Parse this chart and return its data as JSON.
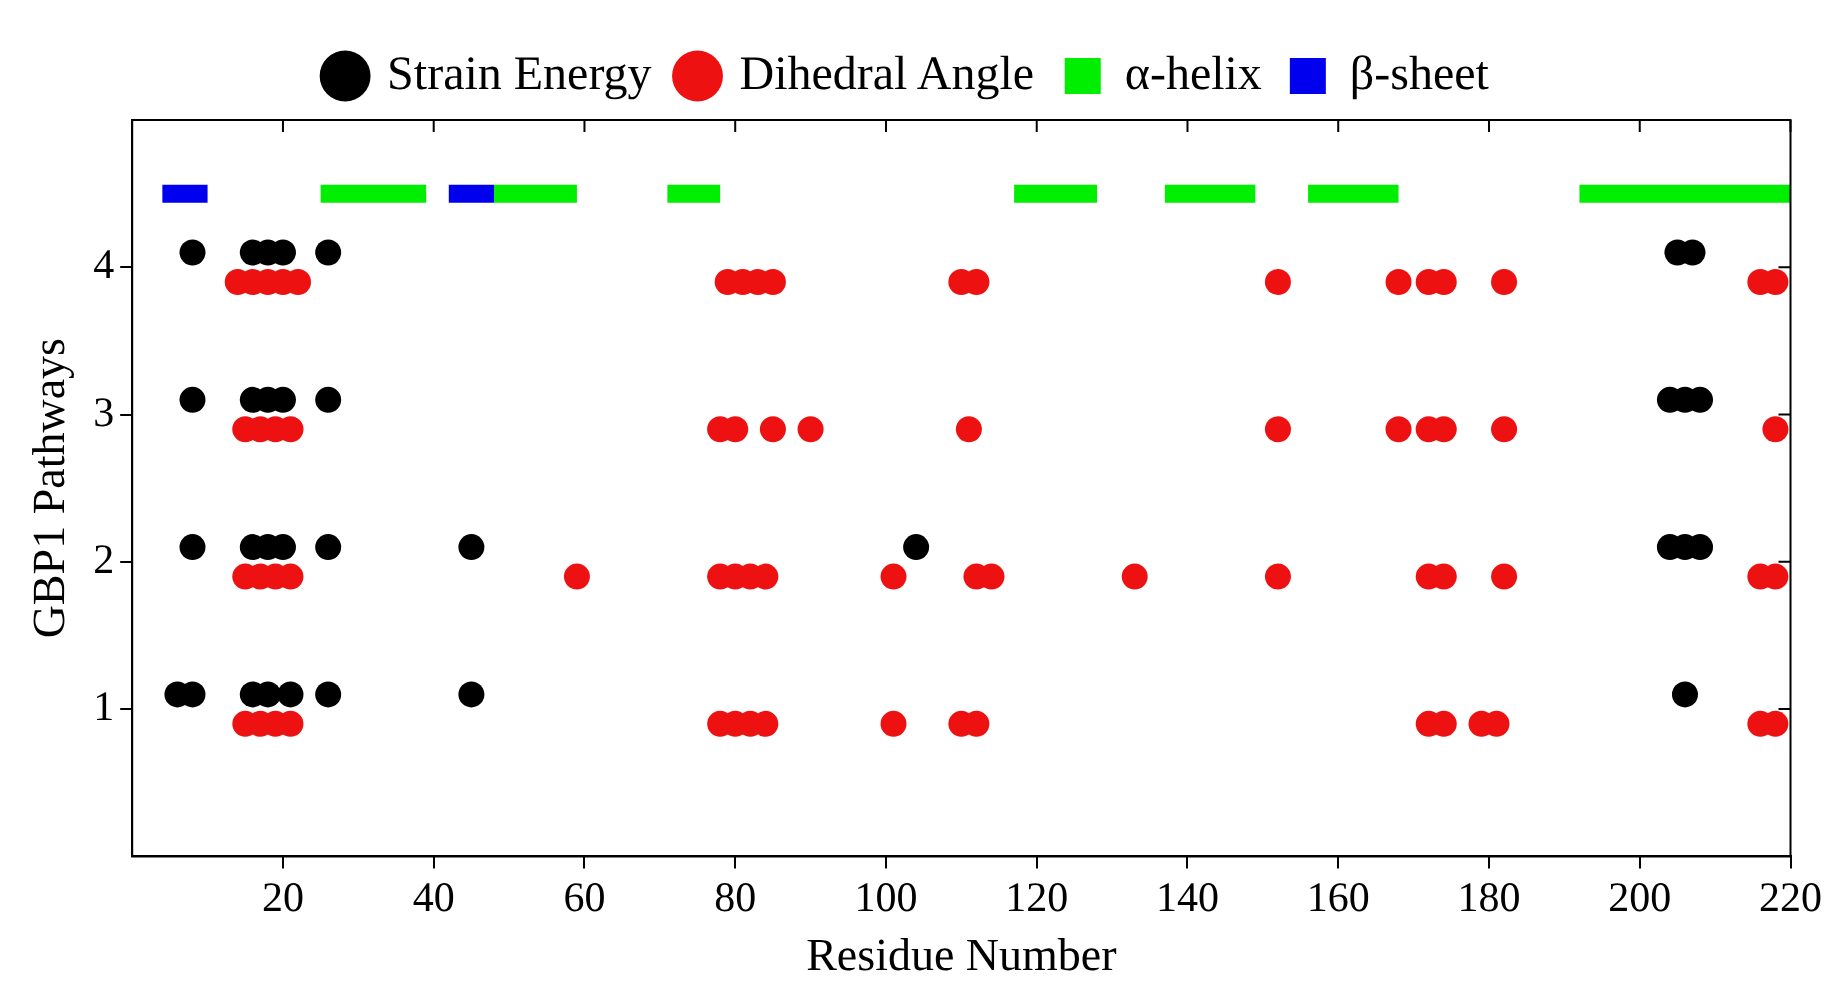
{
  "chart_data": {
    "type": "scatter",
    "xlabel": "Residue Number",
    "ylabel": "GBP1 Pathways",
    "xlim": [
      0,
      220
    ],
    "ylim": [
      0,
      5
    ],
    "xticks": [
      20,
      40,
      60,
      80,
      100,
      120,
      140,
      160,
      180,
      200,
      220
    ],
    "yticks": [
      1,
      2,
      3,
      4
    ],
    "grid": false,
    "legend": "top",
    "marker": "circle",
    "series": [
      {
        "name": "Strain Energy",
        "color": "#000000",
        "x": [
          8,
          16,
          18,
          20,
          26,
          205,
          207,
          8,
          16,
          18,
          20,
          26,
          204,
          206,
          208,
          8,
          16,
          18,
          20,
          26,
          45,
          104,
          204,
          206,
          208,
          6,
          8,
          16,
          18,
          21,
          26,
          45,
          206
        ],
        "values": [
          4.1,
          4.1,
          4.1,
          4.1,
          4.1,
          4.1,
          4.1,
          3.1,
          3.1,
          3.1,
          3.1,
          3.1,
          3.1,
          3.1,
          3.1,
          2.1,
          2.1,
          2.1,
          2.1,
          2.1,
          2.1,
          2.1,
          2.1,
          2.1,
          2.1,
          1.1,
          1.1,
          1.1,
          1.1,
          1.1,
          1.1,
          1.1,
          1.1
        ]
      },
      {
        "name": "Dihedral Angle",
        "color": "#ee1111",
        "x": [
          14,
          16,
          18,
          20,
          22,
          79,
          81,
          83,
          85,
          110,
          112,
          152,
          168,
          172,
          174,
          182,
          216,
          218,
          15,
          17,
          19,
          21,
          78,
          80,
          85,
          90,
          111,
          152,
          168,
          172,
          174,
          182,
          218,
          15,
          17,
          19,
          21,
          59,
          78,
          80,
          82,
          84,
          101,
          112,
          114,
          133,
          152,
          172,
          174,
          182,
          216,
          218,
          15,
          17,
          19,
          21,
          78,
          80,
          82,
          84,
          101,
          110,
          112,
          172,
          174,
          179,
          181,
          216,
          218
        ],
        "values": [
          3.9,
          3.9,
          3.9,
          3.9,
          3.9,
          3.9,
          3.9,
          3.9,
          3.9,
          3.9,
          3.9,
          3.9,
          3.9,
          3.9,
          3.9,
          3.9,
          3.9,
          3.9,
          2.9,
          2.9,
          2.9,
          2.9,
          2.9,
          2.9,
          2.9,
          2.9,
          2.9,
          2.9,
          2.9,
          2.9,
          2.9,
          2.9,
          2.9,
          1.9,
          1.9,
          1.9,
          1.9,
          1.9,
          1.9,
          1.9,
          1.9,
          1.9,
          1.9,
          1.9,
          1.9,
          1.9,
          1.9,
          1.9,
          1.9,
          1.9,
          1.9,
          1.9,
          0.9,
          0.9,
          0.9,
          0.9,
          0.9,
          0.9,
          0.9,
          0.9,
          0.9,
          0.9,
          0.9,
          0.9,
          0.9,
          0.9,
          0.9,
          0.9,
          0.9
        ]
      },
      {
        "name": "α-helix",
        "type": "line",
        "marker": "none",
        "color": "#00ee00",
        "x": [
          25,
          39,
          null,
          48,
          59,
          null,
          71,
          78,
          null,
          117,
          128,
          null,
          137,
          149,
          null,
          156,
          168,
          null,
          192,
          220
        ],
        "values": [
          4.5,
          4.5,
          null,
          4.5,
          4.5,
          null,
          4.5,
          4.5,
          null,
          4.5,
          4.5,
          null,
          4.5,
          4.5,
          null,
          4.5,
          4.5,
          null,
          4.5,
          4.5
        ]
      },
      {
        "name": "β-sheet",
        "type": "line",
        "marker": "none",
        "color": "#0000ee",
        "x": [
          4,
          10,
          null,
          42,
          48
        ],
        "values": [
          4.5,
          4.5,
          null,
          4.5,
          4.5
        ]
      }
    ]
  }
}
